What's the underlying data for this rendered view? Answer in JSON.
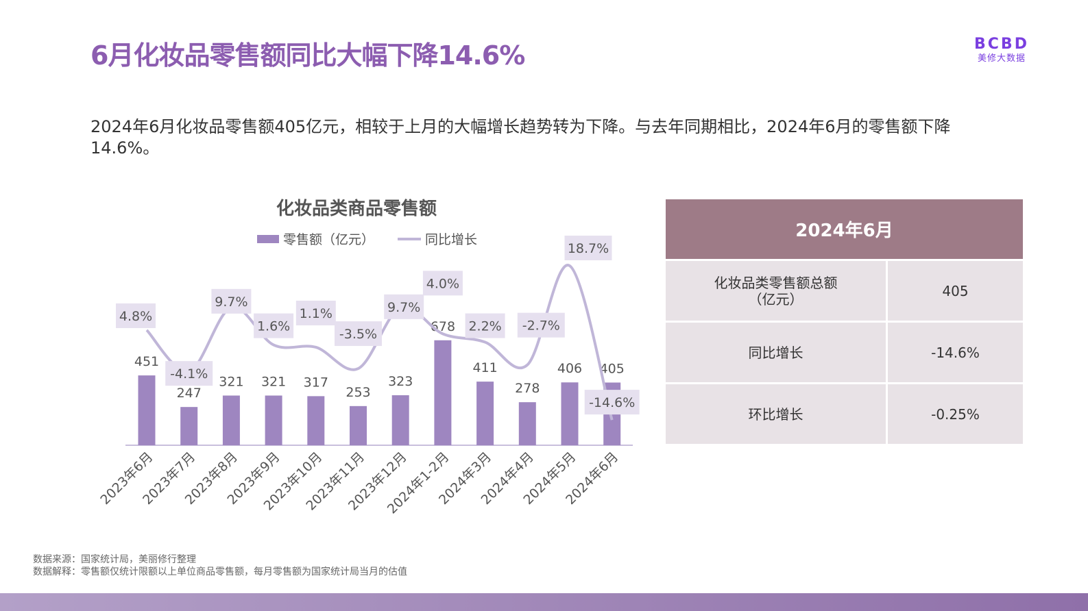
{
  "title": "6月化妆品零售额同比大幅下降14.6%",
  "logo": {
    "mark": "BCBD",
    "sub": "美修大数据"
  },
  "description": "2024年6月化妆品零售额405亿元，相较于上月的大幅增长趋势转为下降。与去年同期相比，2024年6月的零售额下降14.6%。",
  "colors": {
    "title": "#8c5db0",
    "bar": "#9e86c0",
    "line": "#c0b6d8",
    "label_box": "#e6e0ef",
    "table_header": "#9e7b87",
    "table_cell": "#e8e2e6",
    "logo": "#7a3fe0"
  },
  "chart_data": {
    "type": "bar+line",
    "title": "化妆品类商品零售额",
    "categories": [
      "2023年6月",
      "2023年7月",
      "2023年8月",
      "2023年9月",
      "2023年10月",
      "2023年11月",
      "2023年12月",
      "2024年1-2月",
      "2024年3月",
      "2024年4月",
      "2024年5月",
      "2024年6月"
    ],
    "series": [
      {
        "name": "零售额（亿元）",
        "type": "bar",
        "values": [
          451,
          247,
          321,
          321,
          317,
          253,
          323,
          678,
          411,
          278,
          406,
          405
        ]
      },
      {
        "name": "同比增长",
        "type": "line",
        "smooth": true,
        "values": [
          4.8,
          -4.1,
          9.7,
          1.6,
          1.1,
          -3.5,
          9.7,
          4.0,
          2.2,
          -2.7,
          18.7,
          -14.6
        ],
        "labels": [
          "4.8%",
          "-4.1%",
          "9.7%",
          "1.6%",
          "1.1%",
          "-3.5%",
          "9.7%",
          "4.0%",
          "2.2%",
          "-2.7%",
          "18.7%",
          "-14.6%"
        ]
      }
    ],
    "legend": "top",
    "grid": false
  },
  "table": {
    "header": "2024年6月",
    "rows": [
      {
        "label": "化妆品类零售额总额\n（亿元）",
        "value": "405"
      },
      {
        "label": "同比增长",
        "value": "-14.6%"
      },
      {
        "label": "环比增长",
        "value": "-0.25%"
      }
    ]
  },
  "source": {
    "line1": "数据来源：国家统计局，美丽修行整理",
    "line2": "数据解释：零售额仅统计限额以上单位商品零售额，每月零售额为国家统计局当月的估值"
  }
}
